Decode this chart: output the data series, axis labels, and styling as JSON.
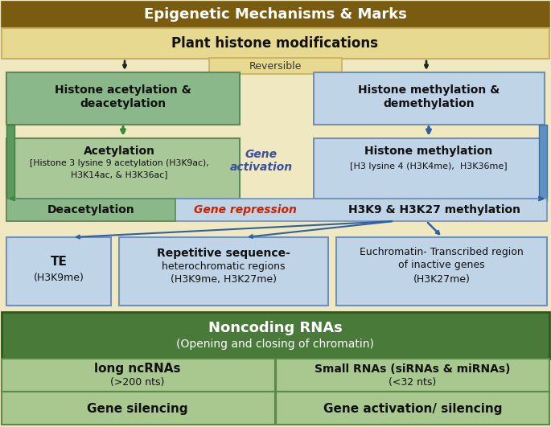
{
  "title": "Epigenetic Mechanisms & Marks",
  "title_bg": "#7a5c10",
  "title_fg": "#ffffff",
  "outer_bg": "#f0e8c0",
  "section1_title": "Plant histone modifications",
  "section1_bg": "#e8d990",
  "reversible_label": "Reversible",
  "box_green_dark": "#8ab88a",
  "box_green_light": "#a8c898",
  "box_blue_light": "#c0d4e8",
  "box_blue_right_bar": "#6090c0",
  "box_green_left_bar": "#5a9a5a",
  "ncrna_bg": "#4a7a3a",
  "ncrna_fg": "#ffffff",
  "arrow_green": "#3a8a3a",
  "arrow_blue": "#3060a0",
  "gene_activation_color": "#3a4fa0",
  "gene_repression_color": "#cc2200",
  "deacetylation_green": "#8ab888",
  "h3k9_blue": "#b8cce0",
  "bottom_box_green": "#a8c890"
}
